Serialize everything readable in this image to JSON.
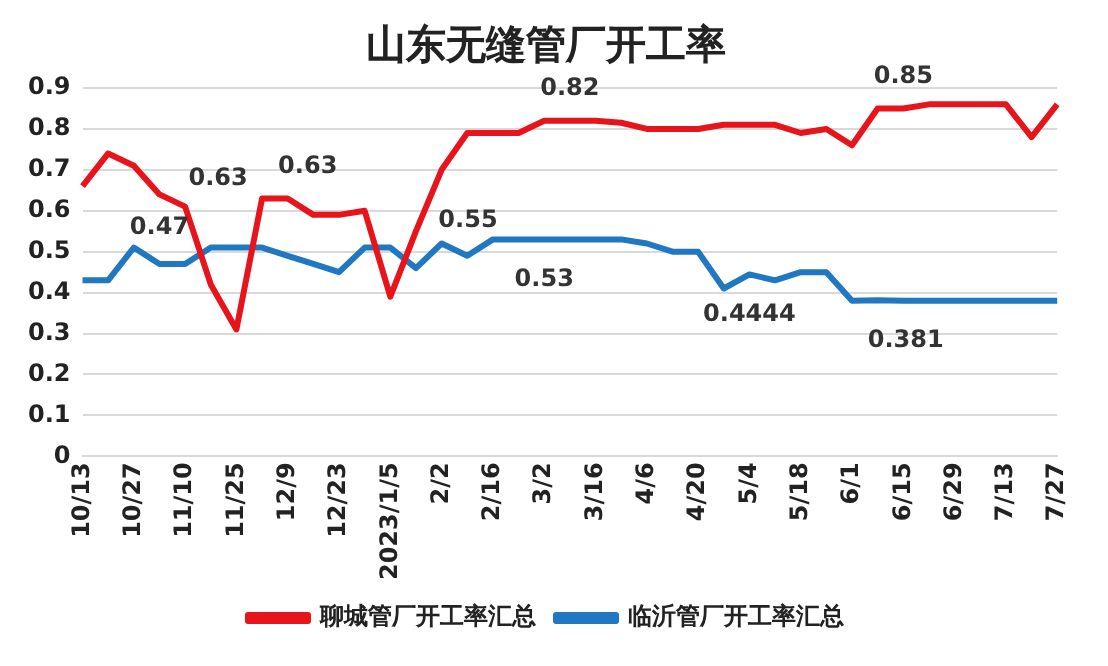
{
  "chart_data": {
    "type": "line",
    "title": "山东无缝管厂开工率",
    "categories": [
      "10/13",
      null,
      "10/27",
      null,
      "11/10",
      null,
      "11/25",
      null,
      "12/9",
      null,
      "12/23",
      null,
      "2023/1/5",
      null,
      "2/2",
      null,
      "2/16",
      null,
      "3/2",
      null,
      "3/16",
      null,
      "4/6",
      null,
      "4/20",
      null,
      "5/4",
      null,
      "5/18",
      null,
      "6/1",
      null,
      "6/15",
      null,
      "6/29",
      null,
      "7/13",
      null,
      "7/27"
    ],
    "series": [
      {
        "name": "聊城管厂开工率汇总",
        "color": "#e8141b",
        "values": [
          0.66,
          0.74,
          0.71,
          0.64,
          0.61,
          0.42,
          0.31,
          0.63,
          0.63,
          0.59,
          0.59,
          0.6,
          0.39,
          0.55,
          0.7,
          0.79,
          0.79,
          0.79,
          0.82,
          0.82,
          0.82,
          0.815,
          0.8,
          0.8,
          0.8,
          0.81,
          0.81,
          0.81,
          0.79,
          0.8,
          0.76,
          0.85,
          0.85,
          0.86,
          0.86,
          0.86,
          0.86,
          0.78,
          0.86
        ],
        "value_labels": [
          null,
          null,
          null,
          null,
          null,
          null,
          null,
          "0.63",
          "0.63",
          null,
          null,
          null,
          null,
          "0.55",
          null,
          null,
          null,
          null,
          null,
          "0.82",
          null,
          null,
          null,
          null,
          null,
          null,
          null,
          null,
          null,
          null,
          null,
          null,
          "0.85",
          null,
          null,
          null,
          null,
          null,
          null
        ]
      },
      {
        "name": "临沂管厂开工率汇总",
        "color": "#1f78c1",
        "values": [
          0.43,
          0.43,
          0.51,
          0.47,
          0.47,
          0.51,
          0.51,
          0.51,
          0.49,
          0.47,
          0.45,
          0.51,
          0.51,
          0.46,
          0.52,
          0.49,
          0.53,
          0.53,
          0.53,
          0.53,
          0.53,
          0.53,
          0.52,
          0.5,
          0.5,
          0.41,
          0.4444,
          0.43,
          0.45,
          0.45,
          0.38,
          0.381,
          0.38,
          0.38,
          0.38,
          0.38,
          0.38,
          0.38,
          0.38
        ],
        "value_labels": [
          null,
          null,
          null,
          "0.47",
          null,
          null,
          null,
          null,
          null,
          null,
          null,
          null,
          null,
          null,
          null,
          null,
          null,
          null,
          "0.53",
          null,
          null,
          null,
          null,
          null,
          null,
          null,
          "0.4444",
          null,
          null,
          null,
          null,
          "0.381",
          null,
          null,
          null,
          null,
          null,
          null,
          null
        ]
      }
    ],
    "ylim": [
      0,
      0.9
    ],
    "yticks": [
      0,
      0.1,
      0.2,
      0.3,
      0.4,
      0.5,
      0.6,
      0.7,
      0.8,
      0.9
    ],
    "grid": "y",
    "legend": "bottom",
    "marker": "none",
    "line_style": "solid"
  }
}
